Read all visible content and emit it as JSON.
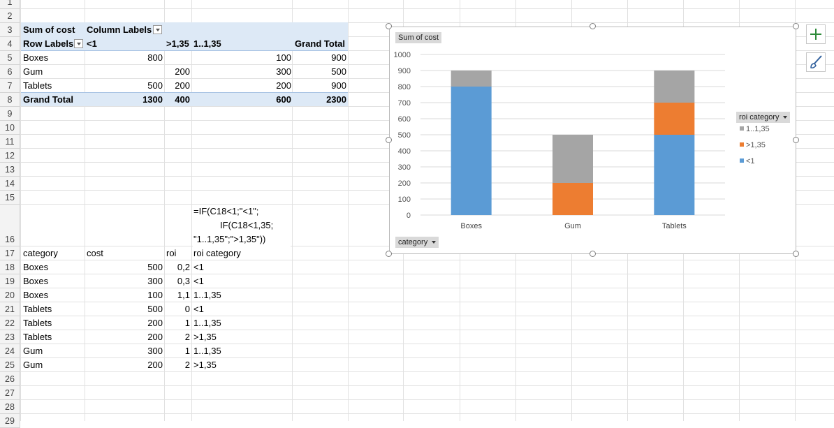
{
  "row_numbers": [
    "1",
    "2",
    "3",
    "4",
    "5",
    "6",
    "7",
    "8",
    "9",
    "10",
    "11",
    "12",
    "13",
    "14",
    "15",
    "16",
    "17",
    "18",
    "19",
    "20",
    "21",
    "22",
    "23",
    "24",
    "25",
    "26",
    "27",
    "28",
    "29"
  ],
  "pivot": {
    "sum_label": "Sum of cost",
    "column_labels": "Column Labels",
    "row_labels": "Row Labels",
    "col_lt1": "<1",
    "col_gt": ">1,35",
    "col_mid": "1..1,35",
    "col_grand": "Grand Total",
    "rows": [
      {
        "label": "Boxes",
        "lt1": "800",
        "gt": "",
        "mid": "100",
        "total": "900"
      },
      {
        "label": "Gum",
        "lt1": "",
        "gt": "200",
        "mid": "300",
        "total": "500"
      },
      {
        "label": "Tablets",
        "lt1": "500",
        "gt": "200",
        "mid": "200",
        "total": "900"
      }
    ],
    "grand": {
      "label": "Grand Total",
      "lt1": "1300",
      "gt": "400",
      "mid": "600",
      "total": "2300"
    }
  },
  "formula": {
    "line1": "=IF(C18<1;\"<1\";",
    "line2": "IF(C18<1,35;",
    "line3": "\"1..1,35\";\">1,35\"))"
  },
  "table": {
    "headers": [
      "category",
      "cost",
      "roi",
      "roi category"
    ],
    "rows": [
      [
        "Boxes",
        "500",
        "0,2",
        "<1"
      ],
      [
        "Boxes",
        "300",
        "0,3",
        "<1"
      ],
      [
        "Boxes",
        "100",
        "1,1",
        "1..1,35"
      ],
      [
        "Tablets",
        "500",
        "0",
        "<1"
      ],
      [
        "Tablets",
        "200",
        "1",
        "1..1,35"
      ],
      [
        "Tablets",
        "200",
        "2",
        ">1,35"
      ],
      [
        "Gum",
        "300",
        "1",
        "1..1,35"
      ],
      [
        "Gum",
        "200",
        "2",
        ">1,35"
      ]
    ]
  },
  "chart": {
    "value_button": "Sum of cost",
    "axis_button": "category",
    "legend_title": "roi category",
    "icons": [
      "plus-icon",
      "brush-icon"
    ]
  },
  "chart_data": {
    "type": "bar",
    "stacked": true,
    "categories": [
      "Boxes",
      "Gum",
      "Tablets"
    ],
    "ylim": [
      0,
      1000
    ],
    "yticks": [
      "0",
      "100",
      "200",
      "300",
      "400",
      "500",
      "600",
      "700",
      "800",
      "900",
      "1000"
    ],
    "series": [
      {
        "name": "<1",
        "color": "#5b9bd5",
        "values": [
          800,
          0,
          500
        ]
      },
      {
        "name": ">1,35",
        "color": "#ed7d31",
        "values": [
          0,
          200,
          200
        ]
      },
      {
        "name": "1..1,35",
        "color": "#a5a5a5",
        "values": [
          100,
          300,
          200
        ]
      }
    ],
    "legend_order": [
      "1..1,35",
      ">1,35",
      "<1"
    ],
    "legend_position": "right",
    "grid": true
  }
}
